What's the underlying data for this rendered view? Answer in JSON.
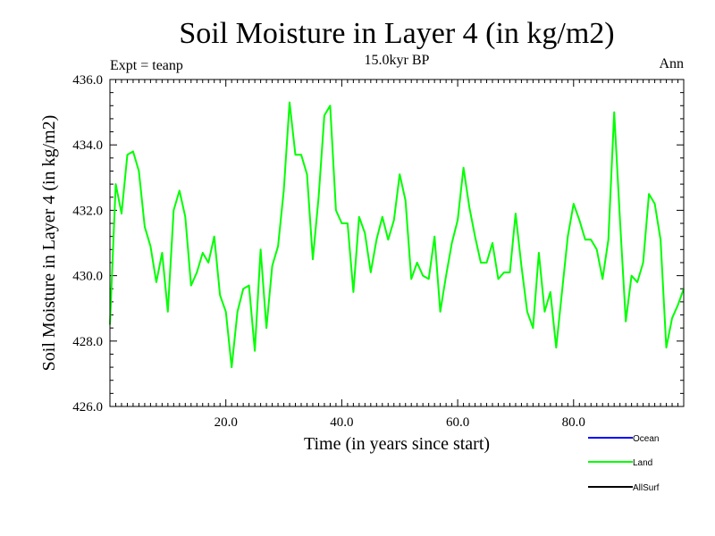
{
  "chart_data": {
    "type": "line",
    "title": "Soil Moisture in Layer 4 (in kg/m2)",
    "subtitle": "15.0kyr BP",
    "left_note": "Expt = teanp",
    "right_note": "Ann",
    "xlabel": "Time (in years since start)",
    "ylabel": "Soil Moisture in Layer 4 (in kg/m2)",
    "xlim": [
      0,
      99
    ],
    "ylim": [
      426,
      436
    ],
    "xticks": [
      20,
      40,
      60,
      80
    ],
    "xtick_labels": [
      "20.0",
      "40.0",
      "60.0",
      "80.0"
    ],
    "yticks": [
      426,
      428,
      430,
      432,
      434,
      436
    ],
    "ytick_labels": [
      "426.0",
      "428.0",
      "430.0",
      "432.0",
      "434.0",
      "436.0"
    ],
    "series": [
      {
        "name": "Ocean",
        "color": "#0000ff",
        "values": []
      },
      {
        "name": "Land",
        "color": "#00ff00",
        "x": [
          0,
          1,
          2,
          3,
          4,
          5,
          6,
          7,
          8,
          9,
          10,
          11,
          12,
          13,
          14,
          15,
          16,
          17,
          18,
          19,
          20,
          21,
          22,
          23,
          24,
          25,
          26,
          27,
          28,
          29,
          30,
          31,
          32,
          33,
          34,
          35,
          36,
          37,
          38,
          39,
          40,
          41,
          42,
          43,
          44,
          45,
          46,
          47,
          48,
          49,
          50,
          51,
          52,
          53,
          54,
          55,
          56,
          57,
          58,
          59,
          60,
          61,
          62,
          63,
          64,
          65,
          66,
          67,
          68,
          69,
          70,
          71,
          72,
          73,
          74,
          75,
          76,
          77,
          78,
          79,
          80,
          81,
          82,
          83,
          84,
          85,
          86,
          87,
          88,
          89,
          90,
          91,
          92,
          93,
          94,
          95,
          96,
          97,
          98,
          99
        ],
        "values": [
          428.5,
          432.8,
          431.9,
          433.7,
          433.8,
          433.2,
          431.5,
          430.9,
          429.8,
          430.7,
          428.9,
          432.0,
          432.6,
          431.8,
          429.7,
          430.1,
          430.7,
          430.4,
          431.2,
          429.4,
          428.9,
          427.2,
          428.9,
          429.6,
          429.7,
          427.7,
          430.8,
          428.4,
          430.3,
          430.9,
          432.6,
          435.3,
          433.7,
          433.7,
          433.1,
          430.5,
          432.4,
          434.9,
          435.2,
          432.0,
          431.6,
          431.6,
          429.5,
          431.8,
          431.3,
          430.1,
          431.1,
          431.8,
          431.1,
          431.7,
          433.1,
          432.3,
          429.9,
          430.4,
          430.0,
          429.9,
          431.2,
          428.9,
          430.0,
          431.0,
          431.7,
          433.3,
          432.1,
          431.2,
          430.4,
          430.4,
          431.0,
          429.9,
          430.1,
          430.1,
          431.9,
          430.3,
          428.9,
          428.4,
          430.7,
          428.9,
          429.5,
          427.8,
          429.5,
          431.2,
          432.2,
          431.7,
          431.1,
          431.1,
          430.8,
          429.9,
          431.1,
          435.0,
          431.7,
          428.6,
          430.0,
          429.8,
          430.4,
          432.5,
          432.2,
          431.1,
          427.8,
          428.7,
          429.1,
          429.6
        ]
      },
      {
        "name": "AllSurf",
        "color": "#000000",
        "values": []
      }
    ],
    "legend": [
      "Ocean",
      "Land",
      "AllSurf"
    ],
    "legend_position": "bottom-right"
  }
}
